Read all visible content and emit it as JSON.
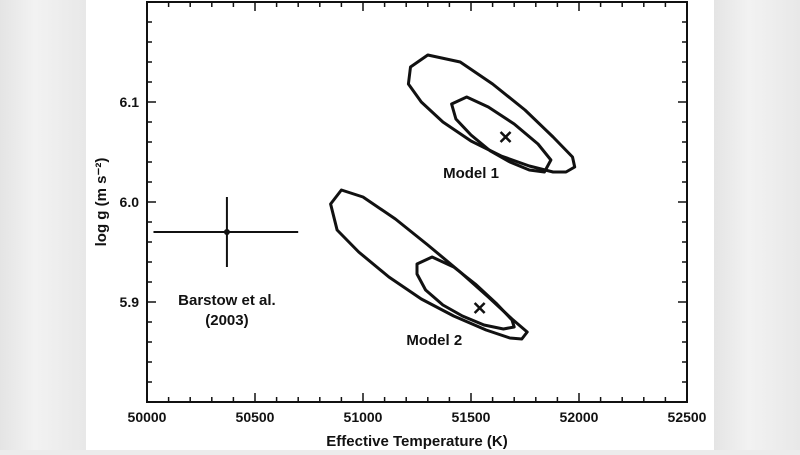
{
  "chart_data": {
    "type": "scatter",
    "xlabel": "Effective Temperature (K)",
    "ylabel": "log g (m s⁻²)",
    "xlim": [
      50000,
      52500
    ],
    "ylim": [
      5.8,
      6.2
    ],
    "xticks": [
      "50000",
      "50500",
      "51000",
      "51500",
      "52000",
      "52500"
    ],
    "xtick_values": [
      50000,
      50500,
      51000,
      51500,
      52000,
      52500
    ],
    "yticks": [
      "5.9",
      "6.0",
      "6.1"
    ],
    "ytick_values": [
      5.9,
      6.0,
      6.1
    ],
    "grid": false,
    "points": [
      {
        "label": "Model 1",
        "marker": "x",
        "x": 51660,
        "y": 6.065,
        "label_at": [
          51500,
          6.024
        ],
        "contours": [
          [
            [
              51220,
              6.135
            ],
            [
              51300,
              6.147
            ],
            [
              51450,
              6.14
            ],
            [
              51600,
              6.118
            ],
            [
              51750,
              6.092
            ],
            [
              51880,
              6.065
            ],
            [
              51970,
              6.045
            ],
            [
              51980,
              6.035
            ],
            [
              51940,
              6.03
            ],
            [
              51880,
              6.03
            ],
            [
              51770,
              6.036
            ],
            [
              51640,
              6.046
            ],
            [
              51500,
              6.061
            ],
            [
              51370,
              6.08
            ],
            [
              51270,
              6.1
            ],
            [
              51210,
              6.118
            ],
            [
              51220,
              6.135
            ]
          ],
          [
            [
              51410,
              6.098
            ],
            [
              51480,
              6.105
            ],
            [
              51580,
              6.095
            ],
            [
              51700,
              6.078
            ],
            [
              51810,
              6.058
            ],
            [
              51870,
              6.042
            ],
            [
              51840,
              6.03
            ],
            [
              51770,
              6.032
            ],
            [
              51680,
              6.04
            ],
            [
              51590,
              6.051
            ],
            [
              51500,
              6.067
            ],
            [
              51430,
              6.083
            ],
            [
              51410,
              6.098
            ]
          ]
        ]
      },
      {
        "label": "Model 2",
        "marker": "x",
        "x": 51540,
        "y": 5.894,
        "label_at": [
          51330,
          5.857
        ],
        "contours": [
          [
            [
              50850,
              5.998
            ],
            [
              50900,
              6.012
            ],
            [
              51000,
              6.005
            ],
            [
              51150,
              5.983
            ],
            [
              51300,
              5.957
            ],
            [
              51450,
              5.93
            ],
            [
              51580,
              5.905
            ],
            [
              51690,
              5.883
            ],
            [
              51760,
              5.87
            ],
            [
              51735,
              5.863
            ],
            [
              51680,
              5.864
            ],
            [
              51570,
              5.872
            ],
            [
              51420,
              5.886
            ],
            [
              51270,
              5.903
            ],
            [
              51120,
              5.925
            ],
            [
              50980,
              5.95
            ],
            [
              50880,
              5.972
            ],
            [
              50850,
              5.998
            ]
          ],
          [
            [
              51250,
              5.938
            ],
            [
              51320,
              5.945
            ],
            [
              51420,
              5.935
            ],
            [
              51520,
              5.918
            ],
            [
              51620,
              5.898
            ],
            [
              51690,
              5.882
            ],
            [
              51700,
              5.875
            ],
            [
              51650,
              5.873
            ],
            [
              51560,
              5.877
            ],
            [
              51460,
              5.886
            ],
            [
              51370,
              5.897
            ],
            [
              51290,
              5.912
            ],
            [
              51250,
              5.928
            ],
            [
              51250,
              5.938
            ]
          ]
        ]
      },
      {
        "label": "Barstow et al. (2003)",
        "label_lines": [
          "Barstow et al.",
          "(2003)"
        ],
        "marker": "dot",
        "x": 50370,
        "y": 5.97,
        "xerr": [
          50030,
          50700
        ],
        "yerr": [
          5.935,
          6.005
        ],
        "label_at": [
          50370,
          5.897
        ]
      }
    ]
  }
}
